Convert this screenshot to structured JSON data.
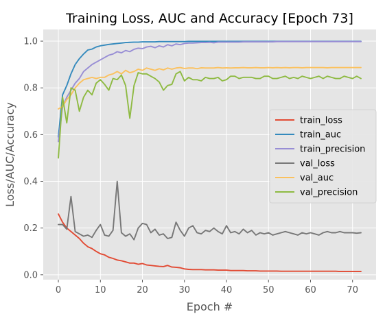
{
  "chart_data": {
    "type": "line",
    "title": "Training Loss, AUC and Accuracy [Epoch 73]",
    "xlabel": "Epoch #",
    "ylabel": "Loss/AUC/Accuracy",
    "xlim": [
      -3.6,
      75.6
    ],
    "ylim": [
      -0.021,
      1.05
    ],
    "xticks": [
      0,
      10,
      20,
      30,
      40,
      50,
      60,
      70
    ],
    "yticks": [
      0.0,
      0.2,
      0.4,
      0.6,
      0.8,
      1.0
    ],
    "xtick_labels": [
      "0",
      "10",
      "20",
      "30",
      "40",
      "50",
      "60",
      "70"
    ],
    "ytick_labels": [
      "0.0",
      "0.2",
      "0.4",
      "0.6",
      "0.8",
      "1.0"
    ],
    "grid": true,
    "style": "ggplot",
    "legend_position": "center-right",
    "series": [
      {
        "name": "train_loss",
        "color": "#E24A33",
        "values": [
          0.26,
          0.225,
          0.2,
          0.185,
          0.17,
          0.155,
          0.135,
          0.12,
          0.112,
          0.1,
          0.09,
          0.085,
          0.075,
          0.07,
          0.063,
          0.06,
          0.055,
          0.05,
          0.05,
          0.045,
          0.048,
          0.042,
          0.04,
          0.038,
          0.036,
          0.035,
          0.04,
          0.033,
          0.032,
          0.03,
          0.025,
          0.023,
          0.022,
          0.022,
          0.022,
          0.021,
          0.021,
          0.021,
          0.02,
          0.02,
          0.02,
          0.018,
          0.018,
          0.018,
          0.018,
          0.017,
          0.017,
          0.017,
          0.016,
          0.016,
          0.016,
          0.016,
          0.016,
          0.015,
          0.015,
          0.015,
          0.015,
          0.015,
          0.015,
          0.015,
          0.015,
          0.015,
          0.015,
          0.015,
          0.015,
          0.015,
          0.015,
          0.014,
          0.014,
          0.014,
          0.014,
          0.014,
          0.014
        ]
      },
      {
        "name": "train_auc",
        "color": "#348ABD",
        "values": [
          0.59,
          0.77,
          0.81,
          0.86,
          0.9,
          0.925,
          0.945,
          0.962,
          0.966,
          0.975,
          0.98,
          0.983,
          0.986,
          0.988,
          0.99,
          0.992,
          0.994,
          0.995,
          0.996,
          0.996,
          0.997,
          0.997,
          0.997,
          0.997,
          0.998,
          0.998,
          0.998,
          0.998,
          0.998,
          0.998,
          0.998,
          0.999,
          0.999,
          0.999,
          0.999,
          0.999,
          0.999,
          0.999,
          0.999,
          0.999,
          0.999,
          0.999,
          0.999,
          0.999,
          0.999,
          0.999,
          0.999,
          0.999,
          0.999,
          0.999,
          0.999,
          0.999,
          0.999,
          0.999,
          0.999,
          0.999,
          0.999,
          0.999,
          0.999,
          0.999,
          0.999,
          0.999,
          0.999,
          0.999,
          0.999,
          0.999,
          0.999,
          0.999,
          0.999,
          0.999,
          0.999,
          0.999,
          0.999
        ]
      },
      {
        "name": "train_precision",
        "color": "#988ED5",
        "values": [
          0.57,
          0.72,
          0.76,
          0.79,
          0.82,
          0.84,
          0.87,
          0.885,
          0.9,
          0.91,
          0.92,
          0.93,
          0.94,
          0.945,
          0.955,
          0.95,
          0.96,
          0.955,
          0.965,
          0.97,
          0.968,
          0.975,
          0.978,
          0.972,
          0.98,
          0.975,
          0.985,
          0.98,
          0.988,
          0.985,
          0.99,
          0.992,
          0.992,
          0.993,
          0.994,
          0.994,
          0.995,
          0.993,
          0.996,
          0.996,
          0.996,
          0.996,
          0.996,
          0.996,
          0.997,
          0.997,
          0.997,
          0.997,
          0.997,
          0.997,
          0.997,
          0.997,
          0.998,
          0.998,
          0.998,
          0.998,
          0.998,
          0.998,
          0.998,
          0.998,
          0.998,
          0.998,
          0.998,
          0.998,
          0.998,
          0.998,
          0.998,
          0.998,
          0.998,
          0.998,
          0.998,
          0.998,
          0.998
        ]
      },
      {
        "name": "val_loss",
        "color": "#777777",
        "values": [
          0.215,
          0.215,
          0.195,
          0.335,
          0.185,
          0.175,
          0.165,
          0.17,
          0.16,
          0.19,
          0.215,
          0.17,
          0.165,
          0.19,
          0.4,
          0.18,
          0.165,
          0.175,
          0.15,
          0.2,
          0.22,
          0.215,
          0.18,
          0.195,
          0.17,
          0.175,
          0.155,
          0.16,
          0.225,
          0.19,
          0.165,
          0.2,
          0.21,
          0.18,
          0.175,
          0.19,
          0.185,
          0.2,
          0.185,
          0.175,
          0.21,
          0.18,
          0.185,
          0.175,
          0.195,
          0.18,
          0.19,
          0.17,
          0.18,
          0.175,
          0.18,
          0.17,
          0.175,
          0.18,
          0.185,
          0.18,
          0.175,
          0.17,
          0.18,
          0.175,
          0.18,
          0.175,
          0.17,
          0.18,
          0.185,
          0.18,
          0.18,
          0.185,
          0.18,
          0.18,
          0.18,
          0.178,
          0.18
        ]
      },
      {
        "name": "val_auc",
        "color": "#FBC15E",
        "values": [
          0.71,
          0.72,
          0.75,
          0.77,
          0.8,
          0.82,
          0.835,
          0.84,
          0.845,
          0.84,
          0.845,
          0.845,
          0.855,
          0.86,
          0.87,
          0.86,
          0.875,
          0.865,
          0.87,
          0.88,
          0.875,
          0.885,
          0.88,
          0.875,
          0.882,
          0.877,
          0.885,
          0.88,
          0.885,
          0.887,
          0.883,
          0.885,
          0.885,
          0.882,
          0.886,
          0.885,
          0.885,
          0.885,
          0.887,
          0.885,
          0.886,
          0.885,
          0.886,
          0.886,
          0.887,
          0.886,
          0.886,
          0.887,
          0.886,
          0.886,
          0.887,
          0.886,
          0.887,
          0.886,
          0.887,
          0.886,
          0.887,
          0.887,
          0.886,
          0.887,
          0.887,
          0.887,
          0.887,
          0.887,
          0.886,
          0.887,
          0.887,
          0.887,
          0.887,
          0.887,
          0.887,
          0.887,
          0.887
        ]
      },
      {
        "name": "val_precision",
        "color": "#8EBA42",
        "values": [
          0.5,
          0.76,
          0.65,
          0.8,
          0.79,
          0.7,
          0.76,
          0.79,
          0.77,
          0.82,
          0.835,
          0.815,
          0.79,
          0.84,
          0.835,
          0.855,
          0.81,
          0.67,
          0.81,
          0.865,
          0.86,
          0.86,
          0.85,
          0.84,
          0.825,
          0.79,
          0.81,
          0.815,
          0.86,
          0.87,
          0.83,
          0.845,
          0.835,
          0.835,
          0.83,
          0.845,
          0.84,
          0.84,
          0.845,
          0.83,
          0.835,
          0.85,
          0.85,
          0.84,
          0.845,
          0.845,
          0.845,
          0.84,
          0.84,
          0.85,
          0.85,
          0.84,
          0.84,
          0.845,
          0.85,
          0.84,
          0.845,
          0.84,
          0.85,
          0.845,
          0.84,
          0.845,
          0.85,
          0.84,
          0.85,
          0.845,
          0.84,
          0.84,
          0.85,
          0.845,
          0.84,
          0.85,
          0.84
        ]
      }
    ]
  }
}
